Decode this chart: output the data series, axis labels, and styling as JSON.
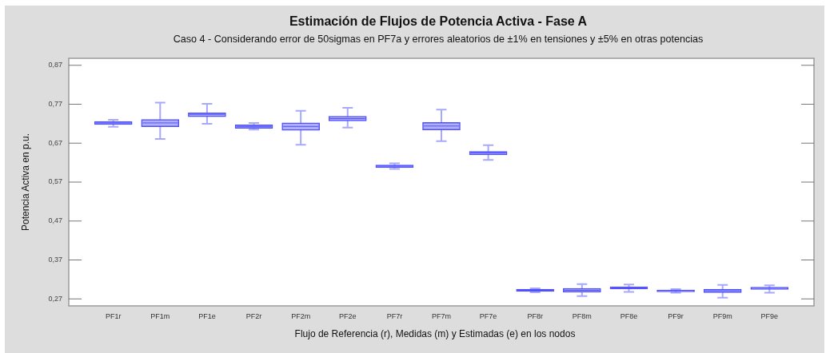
{
  "chart_data": {
    "type": "box",
    "title": "Estimación de Flujos de Potencia Activa - Fase A",
    "subtitle": "Caso 4 - Considerando error de 50sigmas en PF7a y errores aleatorios de ±1% en tensiones y ±5% en otras potencias",
    "xlabel": "Flujo de Referencia (r), Medidas (m) y Estimadas (e) en los nodos",
    "ylabel": "Potencia Activa en p.u.",
    "categories": [
      "PF1r",
      "PF1m",
      "PF1e",
      "PF2r",
      "PF2m",
      "PF2e",
      "PF7r",
      "PF7m",
      "PF7e",
      "PF8r",
      "PF8m",
      "PF8e",
      "PF9r",
      "PF9m",
      "PF9e"
    ],
    "ylim": [
      0.252,
      0.888
    ],
    "yticks": [
      {
        "value": 0.27,
        "label": "0,27"
      },
      {
        "value": 0.37,
        "label": "0,37"
      },
      {
        "value": 0.47,
        "label": "0,47"
      },
      {
        "value": 0.57,
        "label": "0,57"
      },
      {
        "value": 0.67,
        "label": "0,67"
      },
      {
        "value": 0.77,
        "label": "0,77"
      },
      {
        "value": 0.87,
        "label": "0,87"
      }
    ],
    "series": [
      {
        "color": "#5050ff",
        "boxes": [
          {
            "low": 0.712,
            "q1": 0.718,
            "median": 0.722,
            "q3": 0.726,
            "high": 0.73
          },
          {
            "low": 0.681,
            "q1": 0.712,
            "median": 0.722,
            "q3": 0.731,
            "high": 0.774
          },
          {
            "low": 0.72,
            "q1": 0.738,
            "median": 0.744,
            "q3": 0.748,
            "high": 0.771
          },
          {
            "low": 0.705,
            "q1": 0.708,
            "median": 0.713,
            "q3": 0.717,
            "high": 0.722
          },
          {
            "low": 0.666,
            "q1": 0.703,
            "median": 0.713,
            "q3": 0.722,
            "high": 0.753
          },
          {
            "low": 0.71,
            "q1": 0.727,
            "median": 0.733,
            "q3": 0.739,
            "high": 0.761
          },
          {
            "low": 0.604,
            "q1": 0.607,
            "median": 0.611,
            "q3": 0.614,
            "high": 0.618
          },
          {
            "low": 0.675,
            "q1": 0.704,
            "median": 0.714,
            "q3": 0.723,
            "high": 0.756
          },
          {
            "low": 0.627,
            "q1": 0.64,
            "median": 0.645,
            "q3": 0.649,
            "high": 0.665
          },
          {
            "low": 0.287,
            "q1": 0.289,
            "median": 0.292,
            "q3": 0.295,
            "high": 0.297
          },
          {
            "low": 0.277,
            "q1": 0.287,
            "median": 0.292,
            "q3": 0.297,
            "high": 0.308
          },
          {
            "low": 0.288,
            "q1": 0.295,
            "median": 0.298,
            "q3": 0.301,
            "high": 0.307
          },
          {
            "low": 0.286,
            "q1": 0.288,
            "median": 0.291,
            "q3": 0.293,
            "high": 0.295
          },
          {
            "low": 0.273,
            "q1": 0.286,
            "median": 0.291,
            "q3": 0.295,
            "high": 0.306
          },
          {
            "low": 0.286,
            "q1": 0.294,
            "median": 0.297,
            "q3": 0.3,
            "high": 0.305
          }
        ]
      }
    ]
  }
}
